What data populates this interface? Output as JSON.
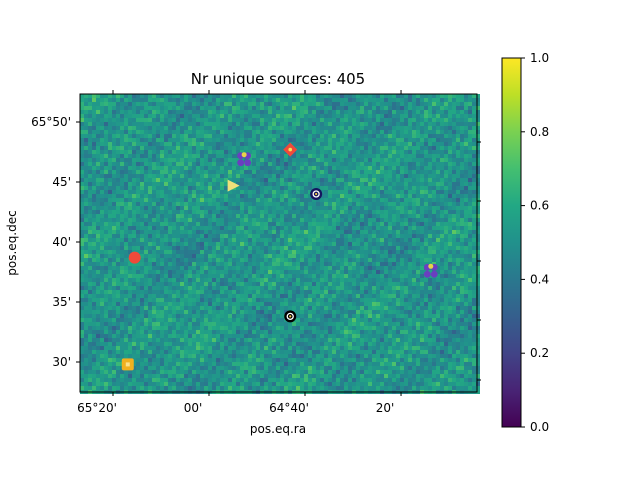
{
  "chart_data": {
    "type": "heatmap",
    "title": "Nr unique sources: 405",
    "xlabel": "pos.eq.ra",
    "ylabel": "pos.eq.dec",
    "x_tick_labels": [
      "65°20'",
      "00'",
      "64°40'",
      "20'"
    ],
    "y_tick_labels": [
      "65°50'",
      "45'",
      "40'",
      "35'",
      "30'"
    ],
    "colorbar": {
      "colormap": "viridis",
      "range": [
        0.0,
        1.0
      ],
      "tick_labels": [
        "0.0",
        "0.2",
        "0.4",
        "0.6",
        "0.8",
        "1.0"
      ]
    },
    "sources": [
      {
        "ra_deg": 64.878,
        "dec_arcmin": 46.9,
        "marker": "flower",
        "color": "#6a3fc0"
      },
      {
        "ra_deg": 64.718,
        "dec_arcmin": 47.7,
        "marker": "diamond",
        "color": "#f04a3a"
      },
      {
        "ra_deg": 64.918,
        "dec_arcmin": 44.7,
        "marker": "triangle",
        "color": "#f0e07a"
      },
      {
        "ra_deg": 64.628,
        "dec_arcmin": 44.0,
        "marker": "ring",
        "color": "#15155e"
      },
      {
        "ra_deg": 65.258,
        "dec_arcmin": 38.7,
        "marker": "circle",
        "color": "#f04a3a"
      },
      {
        "ra_deg": 64.23,
        "dec_arcmin": 37.6,
        "marker": "flower",
        "color": "#6a3fc0"
      },
      {
        "ra_deg": 64.718,
        "dec_arcmin": 33.8,
        "marker": "ring",
        "color": "#000000"
      },
      {
        "ra_deg": 65.282,
        "dec_arcmin": 29.8,
        "marker": "square",
        "color": "#f0b020"
      }
    ]
  }
}
